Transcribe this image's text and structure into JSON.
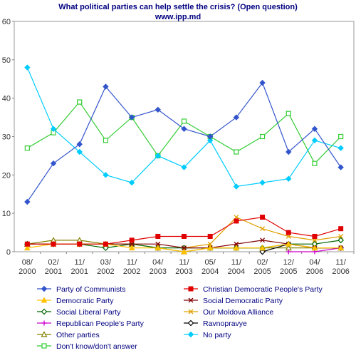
{
  "chart_data": {
    "type": "line",
    "title": "What political parties can help settle the crisis? (Open question)",
    "subtitle": "www.ipp.md",
    "categories": [
      "08/\n2000",
      "02/\n2001",
      "11/\n2001",
      "03/\n2002",
      "11/\n2002",
      "04/\n2003",
      "11/\n2003",
      "05/\n2004",
      "11/\n2004",
      "02/\n2005",
      "12/\n2005",
      "04/\n2006",
      "11/\n2006"
    ],
    "ylim": [
      0,
      60
    ],
    "yticks": [
      0,
      10,
      20,
      30,
      40,
      50,
      60
    ],
    "grid": false,
    "legend_position": "bottom",
    "series": [
      {
        "name": "Party of Communists",
        "color": "#3355cc",
        "marker": "diamond",
        "values": [
          13,
          23,
          28,
          43,
          35,
          37,
          32,
          30,
          35,
          44,
          26,
          32,
          22
        ]
      },
      {
        "name": "Christian Democratic People's Party",
        "color": "#e00000",
        "marker": "square",
        "values": [
          2,
          2,
          2,
          2,
          3,
          4,
          4,
          4,
          8,
          9,
          5,
          4,
          6
        ]
      },
      {
        "name": "Democratic Party",
        "color": "#ffc000",
        "marker": "triangle",
        "values": [
          1,
          2,
          2,
          2,
          1,
          1,
          0,
          1,
          1,
          1,
          2,
          1,
          1
        ]
      },
      {
        "name": "Social Democratic Party",
        "color": "#800000",
        "marker": "x",
        "values": [
          2,
          2,
          2,
          2,
          2,
          2,
          1,
          1,
          2,
          3,
          2,
          1,
          1
        ]
      },
      {
        "name": "Social Liberal Party",
        "color": "#006600",
        "marker": "diamond-open",
        "values": [
          2,
          2,
          2,
          1,
          2,
          1,
          1,
          1,
          1,
          1,
          2,
          2,
          3
        ]
      },
      {
        "name": "Our Moldova Alliance",
        "color": "#e0a000",
        "marker": "x",
        "values": [
          null,
          null,
          null,
          null,
          null,
          null,
          1,
          2,
          9,
          6,
          4,
          3,
          4
        ]
      },
      {
        "name": "Republican People's Party",
        "color": "#cc00cc",
        "marker": "plus",
        "values": [
          null,
          null,
          null,
          null,
          null,
          null,
          null,
          null,
          null,
          null,
          0,
          0,
          1
        ]
      },
      {
        "name": "Ravnopravye",
        "color": "#000000",
        "marker": "diamond-open",
        "values": [
          null,
          null,
          null,
          null,
          null,
          null,
          null,
          null,
          null,
          0,
          2,
          1,
          1
        ]
      },
      {
        "name": "Other parties",
        "color": "#808000",
        "marker": "triangle-open",
        "values": [
          2,
          3,
          3,
          2,
          2,
          1,
          0,
          1,
          1,
          1,
          1,
          1,
          1
        ]
      },
      {
        "name": "No party",
        "color": "#00ccff",
        "marker": "diamond",
        "values": [
          48,
          32,
          26,
          20,
          18,
          25,
          22,
          29,
          17,
          18,
          19,
          29,
          27
        ]
      },
      {
        "name": "Don't know/don't answer",
        "color": "#33cc33",
        "marker": "square-open",
        "values": [
          27,
          31,
          39,
          29,
          35,
          25,
          34,
          30,
          26,
          30,
          36,
          23,
          30
        ]
      }
    ]
  }
}
